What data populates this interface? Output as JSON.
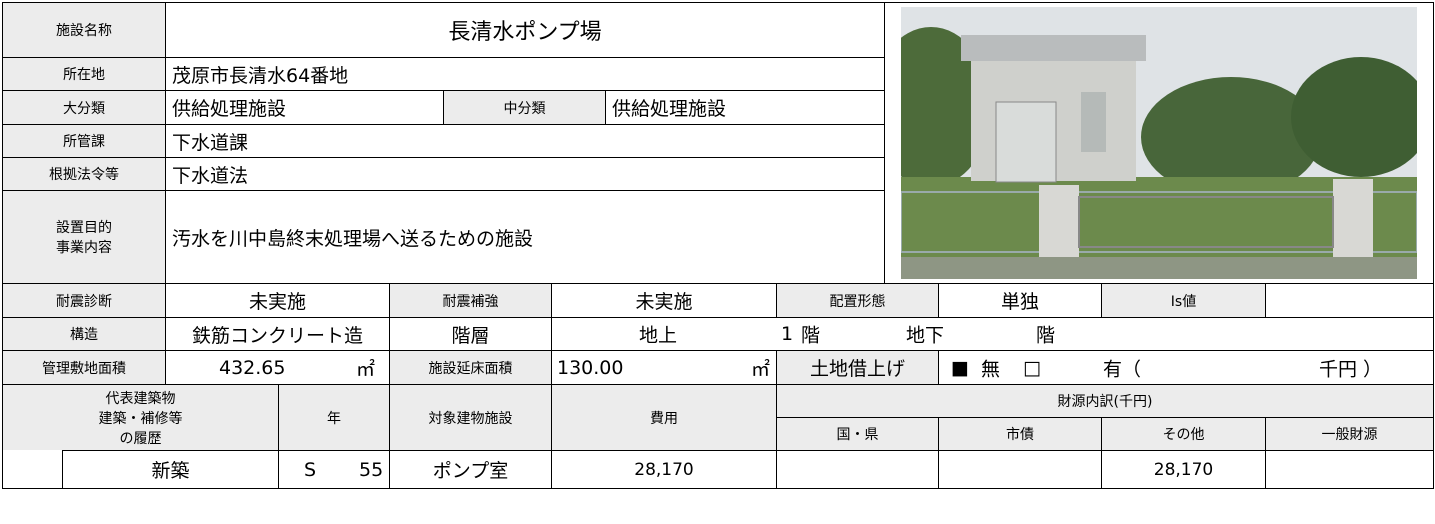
{
  "facility": {
    "name_label": "施設名称",
    "name": "長清水ポンプ場",
    "location_label": "所在地",
    "location": "茂原市長清水64番地",
    "major_label": "大分類",
    "major": "供給処理施設",
    "middle_label": "中分類",
    "middle": "供給処理施設",
    "dept_label": "所管課",
    "dept": "下水道課",
    "law_label": "根拠法令等",
    "law": "下水道法",
    "purpose_label": [
      "設置目的",
      "事業内容"
    ],
    "purpose": "汚水を川中島終末処理場へ送るための施設"
  },
  "building": {
    "seismic_diag_label": "耐震診断",
    "seismic_diag": "未実施",
    "seismic_reinf_label": "耐震補強",
    "seismic_reinf": "未実施",
    "layout_label": "配置形態",
    "layout": "単独",
    "is_label": "Is値",
    "structure_label": "構造",
    "structure": "鉄筋コンクリート造",
    "floors_label": "階層",
    "above_label": "地上",
    "above": "1",
    "above_unit": "階",
    "below_label": "地下",
    "below_unit": "階",
    "site_area_label": "管理敷地面積",
    "site_area": "432.65",
    "site_area_unit": "㎡",
    "floor_area_label": "施設延床面積",
    "floor_area": "130.00",
    "floor_area_unit": "㎡",
    "lease_label": "土地借上げ",
    "lease_no_box": "■",
    "lease_no": "無",
    "lease_yes_box": "□",
    "lease_yes": "有（",
    "lease_unit": "千円 ）"
  },
  "history": {
    "header": [
      "代表建築物",
      "建築・補修等",
      "の履歴"
    ],
    "year_label": "年",
    "target_label": "対象建物施設",
    "cost_label": "費用",
    "funding_label": "財源内訳(千円)",
    "funding_cols": [
      "国・県",
      "市債",
      "その他",
      "一般財源"
    ],
    "rows": [
      {
        "type": "新築",
        "era": "S",
        "year": "55",
        "target": "ポンプ室",
        "cost": "28,170",
        "other": "28,170"
      }
    ]
  }
}
